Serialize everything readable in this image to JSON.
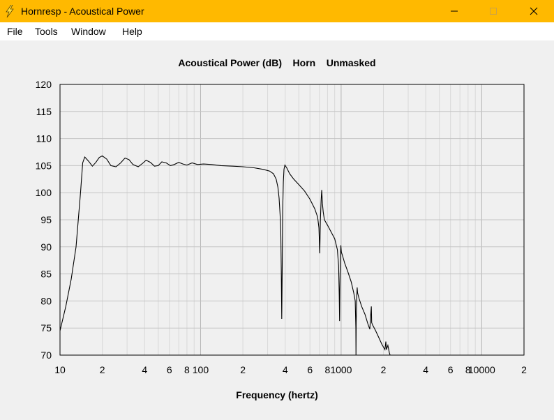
{
  "window": {
    "title": "Hornresp - Acoustical Power",
    "controls": {
      "minimize": "minimize",
      "maximize": "maximize",
      "close": "close"
    },
    "icon": "lightning-bolt-icon"
  },
  "menu": {
    "items": [
      {
        "label": "File"
      },
      {
        "label": "Tools"
      },
      {
        "label": "Window"
      },
      {
        "label": "Help"
      }
    ]
  },
  "chart_data": {
    "type": "line",
    "title": "Acoustical Power (dB)    Horn    Unmasked",
    "xlabel": "Frequency (hertz)",
    "ylabel": "",
    "x_scale": "log",
    "xlim": [
      10,
      20000
    ],
    "ylim": [
      70,
      120
    ],
    "y_ticks": [
      120,
      115,
      110,
      105,
      100,
      95,
      90,
      85,
      80,
      75,
      70
    ],
    "x_tick_labels": [
      {
        "x": 10,
        "label": "10"
      },
      {
        "x": 20,
        "label": "2"
      },
      {
        "x": 40,
        "label": "4"
      },
      {
        "x": 60,
        "label": "6"
      },
      {
        "x": 80,
        "label": "8"
      },
      {
        "x": 100,
        "label": "100"
      },
      {
        "x": 200,
        "label": "2"
      },
      {
        "x": 400,
        "label": "4"
      },
      {
        "x": 600,
        "label": "6"
      },
      {
        "x": 800,
        "label": "8"
      },
      {
        "x": 1000,
        "label": "1000"
      },
      {
        "x": 2000,
        "label": "2"
      },
      {
        "x": 4000,
        "label": "4"
      },
      {
        "x": 6000,
        "label": "6"
      },
      {
        "x": 8000,
        "label": "8"
      },
      {
        "x": 10000,
        "label": "10000"
      },
      {
        "x": 20000,
        "label": "2"
      }
    ],
    "grid": true,
    "line_color": "#000000",
    "series": [
      {
        "points": [
          [
            10,
            74.5
          ],
          [
            11,
            79
          ],
          [
            12,
            84
          ],
          [
            13,
            90
          ],
          [
            14,
            100
          ],
          [
            14.5,
            105.5
          ],
          [
            15,
            106.6
          ],
          [
            16,
            105.8
          ],
          [
            17,
            104.9
          ],
          [
            18,
            105.6
          ],
          [
            19,
            106.5
          ],
          [
            20,
            106.8
          ],
          [
            21.5,
            106.2
          ],
          [
            23,
            105.0
          ],
          [
            25,
            104.8
          ],
          [
            27,
            105.5
          ],
          [
            29,
            106.4
          ],
          [
            31,
            106.1
          ],
          [
            33,
            105.2
          ],
          [
            36,
            104.8
          ],
          [
            39,
            105.5
          ],
          [
            41,
            106.0
          ],
          [
            44,
            105.6
          ],
          [
            47,
            104.9
          ],
          [
            50,
            105.0
          ],
          [
            53,
            105.7
          ],
          [
            57,
            105.5
          ],
          [
            61,
            105.0
          ],
          [
            65,
            105.2
          ],
          [
            70,
            105.6
          ],
          [
            75,
            105.3
          ],
          [
            80,
            105.1
          ],
          [
            87,
            105.5
          ],
          [
            95,
            105.2
          ],
          [
            105,
            105.3
          ],
          [
            120,
            105.2
          ],
          [
            140,
            105.0
          ],
          [
            170,
            104.9
          ],
          [
            200,
            104.8
          ],
          [
            240,
            104.6
          ],
          [
            280,
            104.3
          ],
          [
            310,
            104.0
          ],
          [
            330,
            103.5
          ],
          [
            345,
            102.5
          ],
          [
            355,
            101.0
          ],
          [
            362,
            99.0
          ],
          [
            368,
            96.0
          ],
          [
            372,
            93.0
          ],
          [
            375,
            86.0
          ],
          [
            378,
            76.7
          ],
          [
            381,
            86.0
          ],
          [
            384,
            97.0
          ],
          [
            388,
            102.0
          ],
          [
            392,
            104.3
          ],
          [
            398,
            105.1
          ],
          [
            410,
            104.6
          ],
          [
            430,
            103.5
          ],
          [
            460,
            102.5
          ],
          [
            500,
            101.5
          ],
          [
            550,
            100.3
          ],
          [
            600,
            98.8
          ],
          [
            650,
            97.0
          ],
          [
            680,
            95.5
          ],
          [
            695,
            93.5
          ],
          [
            705,
            88.8
          ],
          [
            712,
            95.0
          ],
          [
            720,
            98.5
          ],
          [
            728,
            100.5
          ],
          [
            736,
            98.0
          ],
          [
            745,
            96.5
          ],
          [
            760,
            95.0
          ],
          [
            800,
            94.0
          ],
          [
            850,
            92.7
          ],
          [
            900,
            91.5
          ],
          [
            940,
            89.5
          ],
          [
            960,
            86.5
          ],
          [
            970,
            81.0
          ],
          [
            975,
            76.3
          ],
          [
            980,
            82.0
          ],
          [
            988,
            88.0
          ],
          [
            995,
            90.3
          ],
          [
            1005,
            89.0
          ],
          [
            1020,
            88.5
          ],
          [
            1060,
            87.0
          ],
          [
            1120,
            85.3
          ],
          [
            1180,
            83.5
          ],
          [
            1230,
            81.5
          ],
          [
            1260,
            80.0
          ],
          [
            1272,
            75.0
          ],
          [
            1276,
            70.0
          ],
          [
            1280,
            76.0
          ],
          [
            1290,
            80.5
          ],
          [
            1300,
            82.5
          ],
          [
            1310,
            81.5
          ],
          [
            1340,
            80.5
          ],
          [
            1400,
            79.0
          ],
          [
            1480,
            77.5
          ],
          [
            1550,
            75.8
          ],
          [
            1600,
            74.8
          ],
          [
            1620,
            77.0
          ],
          [
            1640,
            79.0
          ],
          [
            1650,
            76.0
          ],
          [
            1680,
            75.5
          ],
          [
            1760,
            74.5
          ],
          [
            1850,
            73.3
          ],
          [
            1950,
            72.0
          ],
          [
            2050,
            71.0
          ],
          [
            2080,
            72.5
          ],
          [
            2100,
            71.0
          ],
          [
            2150,
            71.8
          ],
          [
            2200,
            70.5
          ],
          [
            2230,
            70.0
          ]
        ]
      }
    ]
  }
}
